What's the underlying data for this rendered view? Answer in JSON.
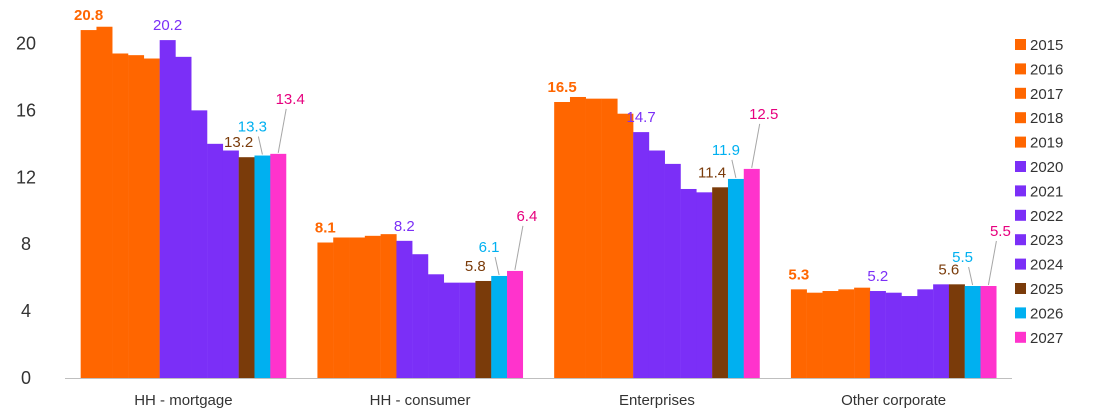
{
  "chart_data": {
    "type": "bar",
    "title": "",
    "xlabel": "",
    "ylabel": "",
    "ylim": [
      0,
      22
    ],
    "y_ticks": [
      0,
      4,
      8,
      12,
      16,
      20
    ],
    "grid": false,
    "legend_position": "right",
    "categories": [
      "HH - mortgage",
      "HH - consumer",
      "Enterprises",
      "Other corporate"
    ],
    "series": [
      {
        "name": "2015",
        "color": "#ff6600",
        "values": [
          20.8,
          8.1,
          16.5,
          5.3
        ]
      },
      {
        "name": "2016",
        "color": "#ff6600",
        "values": [
          21.0,
          8.4,
          16.8,
          5.1
        ]
      },
      {
        "name": "2017",
        "color": "#ff6600",
        "values": [
          19.4,
          8.4,
          16.7,
          5.2
        ]
      },
      {
        "name": "2018",
        "color": "#ff6600",
        "values": [
          19.3,
          8.5,
          16.7,
          5.3
        ]
      },
      {
        "name": "2019",
        "color": "#ff6600",
        "values": [
          19.1,
          8.6,
          15.8,
          5.4
        ]
      },
      {
        "name": "2020",
        "color": "#7b2ff7",
        "values": [
          20.2,
          8.2,
          14.7,
          5.2
        ]
      },
      {
        "name": "2021",
        "color": "#7b2ff7",
        "values": [
          19.2,
          7.4,
          13.6,
          5.1
        ]
      },
      {
        "name": "2022",
        "color": "#7b2ff7",
        "values": [
          16.0,
          6.2,
          12.8,
          4.9
        ]
      },
      {
        "name": "2023",
        "color": "#7b2ff7",
        "values": [
          14.0,
          5.7,
          11.3,
          5.3
        ]
      },
      {
        "name": "2024",
        "color": "#7b2ff7",
        "values": [
          13.6,
          5.7,
          11.1,
          5.6
        ]
      },
      {
        "name": "2025",
        "color": "#7a3b0a",
        "values": [
          13.2,
          5.8,
          11.4,
          5.6
        ]
      },
      {
        "name": "2026",
        "color": "#00b0f0",
        "values": [
          13.3,
          6.1,
          11.9,
          5.5
        ]
      },
      {
        "name": "2027",
        "color": "#ff33cc",
        "values": [
          13.4,
          6.4,
          12.5,
          5.5
        ]
      }
    ],
    "data_labels": [
      {
        "category": 0,
        "series": 0,
        "text": "20.8",
        "color": "#ff6600",
        "bold": true
      },
      {
        "category": 0,
        "series": 5,
        "text": "20.2",
        "color": "#7b2ff7",
        "bold": false
      },
      {
        "category": 0,
        "series": 10,
        "text": "13.2",
        "color": "#7a3b0a",
        "bold": false
      },
      {
        "category": 0,
        "series": 11,
        "text": "13.3",
        "color": "#00b0f0",
        "bold": false
      },
      {
        "category": 0,
        "series": 12,
        "text": "13.4",
        "color": "#e6007e",
        "bold": false
      },
      {
        "category": 1,
        "series": 0,
        "text": "8.1",
        "color": "#ff6600",
        "bold": true
      },
      {
        "category": 1,
        "series": 5,
        "text": "8.2",
        "color": "#7b2ff7",
        "bold": false
      },
      {
        "category": 1,
        "series": 10,
        "text": "5.8",
        "color": "#7a3b0a",
        "bold": false
      },
      {
        "category": 1,
        "series": 11,
        "text": "6.1",
        "color": "#00b0f0",
        "bold": false
      },
      {
        "category": 1,
        "series": 12,
        "text": "6.4",
        "color": "#e6007e",
        "bold": false
      },
      {
        "category": 2,
        "series": 0,
        "text": "16.5",
        "color": "#ff6600",
        "bold": true
      },
      {
        "category": 2,
        "series": 5,
        "text": "14.7",
        "color": "#7b2ff7",
        "bold": false
      },
      {
        "category": 2,
        "series": 10,
        "text": "11.4",
        "color": "#7a3b0a",
        "bold": false
      },
      {
        "category": 2,
        "series": 11,
        "text": "11.9",
        "color": "#00b0f0",
        "bold": false
      },
      {
        "category": 2,
        "series": 12,
        "text": "12.5",
        "color": "#e6007e",
        "bold": false
      },
      {
        "category": 3,
        "series": 0,
        "text": "5.3",
        "color": "#ff6600",
        "bold": true
      },
      {
        "category": 3,
        "series": 5,
        "text": "5.2",
        "color": "#7b2ff7",
        "bold": false
      },
      {
        "category": 3,
        "series": 10,
        "text": "5.6",
        "color": "#7a3b0a",
        "bold": false
      },
      {
        "category": 3,
        "series": 11,
        "text": "5.5",
        "color": "#00b0f0",
        "bold": false
      },
      {
        "category": 3,
        "series": 12,
        "text": "5.5",
        "color": "#e6007e",
        "bold": false
      }
    ]
  }
}
